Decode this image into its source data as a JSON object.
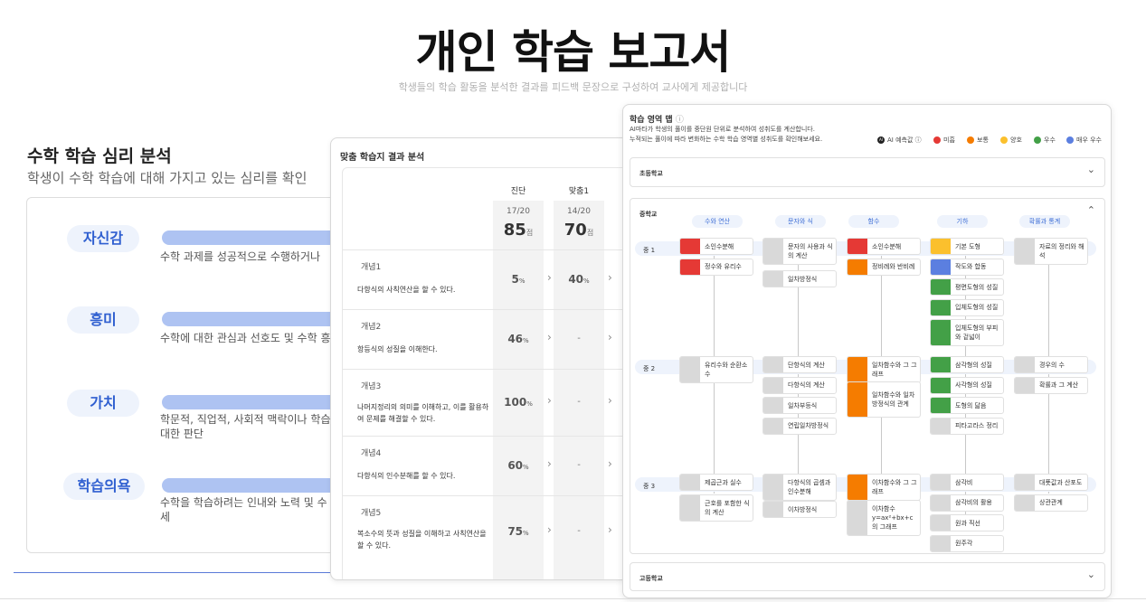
{
  "hero": {
    "title": "개인 학습 보고서",
    "subtitle": "학생들의 학습 활동을 분석한 결과를 피드백 문장으로 구성하여 교사에게 제공합니다"
  },
  "psych": {
    "title": "수학 학습 심리 분석",
    "subtitle": "학생이 수학 학습에 대해 가지고 있는 심리를 확인",
    "rows": [
      {
        "label": "자신감",
        "desc": "수학 과제를 성공적으로 수행하거나"
      },
      {
        "label": "흥미",
        "desc": "수학에 대한 관심과 선호도 및 수학 흥"
      },
      {
        "label": "가치",
        "desc": "학문적, 직업적, 사회적 맥락이나 학습 대한 판단"
      },
      {
        "label": "학습의욕",
        "desc": "수학을 학습하려는 인내와 노력 및 수 자세"
      }
    ]
  },
  "worksheet": {
    "title": "맞춤 학습지 결과 분석",
    "columns": [
      {
        "name": "진단",
        "frac": "17/20",
        "score": "85",
        "unit": "점"
      },
      {
        "name": "맞춤1",
        "frac": "14/20",
        "score": "70",
        "unit": "점"
      }
    ],
    "concepts": [
      {
        "name": "개념1",
        "text": "다항식의 사칙연산을 할 수 있다.",
        "v1": "5",
        "v2": "40"
      },
      {
        "name": "개념2",
        "text": "항등식의 성질을 이해한다.",
        "v1": "46",
        "v2": "-"
      },
      {
        "name": "개념3",
        "text": "나머지정리의 의미를 이해하고, 이를 활용하여 문제를 해결할 수 있다.",
        "v1": "100",
        "v2": "-"
      },
      {
        "name": "개념4",
        "text": "다항식의 인수분해를 할 수 있다.",
        "v1": "60",
        "v2": "-"
      },
      {
        "name": "개념5",
        "text": "복소수의 뜻과 성질을 이해하고 사칙연산을 할 수 있다.",
        "v1": "75",
        "v2": "-"
      }
    ],
    "percent": "%",
    "chevron": "›"
  },
  "map": {
    "title": "학습 영역 맵",
    "info_icon": "ⓘ",
    "desc_line1": "AI마타가 학생의 풀이를 중단원 단위로 분석하여 성취도를 계산합니다.",
    "desc_line2": "누적되는 풀이에 따라 변화하는 수학 학습 영역별 성취도를 확인해보세요.",
    "legend": [
      {
        "label": "AI 예측값 ⓘ",
        "color": "#222222",
        "text": "AI"
      },
      {
        "label": "미흡",
        "color": "#e53935"
      },
      {
        "label": "보통",
        "color": "#f57c00"
      },
      {
        "label": "양호",
        "color": "#fbc02d"
      },
      {
        "label": "우수",
        "color": "#43a047"
      },
      {
        "label": "매우 우수",
        "color": "#5b7fe0"
      }
    ],
    "sections": {
      "elementary": "초등학교",
      "middle": "중학교",
      "high": "고등학교"
    },
    "chevron_down": "⌄",
    "chevron_up": "⌃",
    "subjects": [
      "수와 연산",
      "문자와 식",
      "함수",
      "기하",
      "확률과 통계"
    ],
    "grades": [
      "중 1",
      "중 2",
      "중 3"
    ],
    "nodes": [
      {
        "col": 0,
        "grade": 0,
        "slot": 0,
        "text": "소인수분해",
        "level": "red"
      },
      {
        "col": 0,
        "grade": 0,
        "slot": 1,
        "text": "정수와 유리수",
        "level": "red"
      },
      {
        "col": 1,
        "grade": 0,
        "slot": 0,
        "text": "문자의 사용과 식의 계산",
        "level": "gray",
        "tall": true
      },
      {
        "col": 1,
        "grade": 0,
        "slot": 1.6,
        "text": "일차방정식",
        "level": "gray"
      },
      {
        "col": 2,
        "grade": 0,
        "slot": 0,
        "text": "소인수분해",
        "level": "red"
      },
      {
        "col": 2,
        "grade": 0,
        "slot": 1,
        "text": "정비례와 반비례",
        "level": "orange"
      },
      {
        "col": 3,
        "grade": 0,
        "slot": 0,
        "text": "기본 도형",
        "level": "yellow"
      },
      {
        "col": 3,
        "grade": 0,
        "slot": 1,
        "text": "작도와 합동",
        "level": "blue"
      },
      {
        "col": 3,
        "grade": 0,
        "slot": 2,
        "text": "평면도형의 성질",
        "level": "green"
      },
      {
        "col": 3,
        "grade": 0,
        "slot": 3,
        "text": "입체도형의 성질",
        "level": "green"
      },
      {
        "col": 3,
        "grade": 0,
        "slot": 4,
        "text": "입체도형의 부피와 겉넓이",
        "level": "green",
        "tall": true
      },
      {
        "col": 4,
        "grade": 0,
        "slot": 0,
        "text": "자료의 정리와 해석",
        "level": "gray",
        "tall": true
      },
      {
        "col": 0,
        "grade": 1,
        "slot": 0,
        "text": "유리수와 순환소수",
        "level": "gray",
        "tall": true
      },
      {
        "col": 1,
        "grade": 1,
        "slot": 0,
        "text": "단항식의 계산",
        "level": "gray"
      },
      {
        "col": 1,
        "grade": 1,
        "slot": 1,
        "text": "다항식의 계산",
        "level": "gray"
      },
      {
        "col": 1,
        "grade": 1,
        "slot": 2,
        "text": "일차부등식",
        "level": "gray"
      },
      {
        "col": 1,
        "grade": 1,
        "slot": 3,
        "text": "연립일차방정식",
        "level": "gray"
      },
      {
        "col": 2,
        "grade": 1,
        "slot": 0,
        "text": "일차함수와 그 그래프",
        "level": "orange",
        "tall": true
      },
      {
        "col": 2,
        "grade": 1,
        "slot": 1.25,
        "text": "일차함수와 일차방정식의 관계",
        "level": "orange",
        "tall3": true
      },
      {
        "col": 3,
        "grade": 1,
        "slot": 0,
        "text": "삼각형의 성질",
        "level": "green"
      },
      {
        "col": 3,
        "grade": 1,
        "slot": 1,
        "text": "사각형의 성질",
        "level": "green"
      },
      {
        "col": 3,
        "grade": 1,
        "slot": 2,
        "text": "도형의 닮음",
        "level": "green"
      },
      {
        "col": 3,
        "grade": 1,
        "slot": 3,
        "text": "피타고라스 정리",
        "level": "gray"
      },
      {
        "col": 4,
        "grade": 1,
        "slot": 0,
        "text": "경우의 수",
        "level": "gray"
      },
      {
        "col": 4,
        "grade": 1,
        "slot": 1,
        "text": "확률과 그 계산",
        "level": "gray"
      },
      {
        "col": 0,
        "grade": 2,
        "slot": 0,
        "text": "제곱근과 실수",
        "level": "gray"
      },
      {
        "col": 0,
        "grade": 2,
        "slot": 1,
        "text": "근호를 포함한 식의 계산",
        "level": "gray",
        "tall": true
      },
      {
        "col": 1,
        "grade": 2,
        "slot": 0,
        "text": "다항식의 곱셈과 인수분해",
        "level": "gray",
        "tall": true
      },
      {
        "col": 1,
        "grade": 2,
        "slot": 1.35,
        "text": "이차방정식",
        "level": "gray"
      },
      {
        "col": 2,
        "grade": 2,
        "slot": 0,
        "text": "이차함수와 그 그래프",
        "level": "orange",
        "tall": true
      },
      {
        "col": 2,
        "grade": 2,
        "slot": 1.3,
        "text": "이차함수 y=ax²+bx+c 의 그래프",
        "level": "gray",
        "tall3": true
      },
      {
        "col": 3,
        "grade": 2,
        "slot": 0,
        "text": "삼각비",
        "level": "gray"
      },
      {
        "col": 3,
        "grade": 2,
        "slot": 1,
        "text": "삼각비의 활용",
        "level": "gray"
      },
      {
        "col": 3,
        "grade": 2,
        "slot": 2,
        "text": "원과 직선",
        "level": "gray"
      },
      {
        "col": 3,
        "grade": 2,
        "slot": 3,
        "text": "원주각",
        "level": "gray"
      },
      {
        "col": 4,
        "grade": 2,
        "slot": 0,
        "text": "대푯값과 산포도",
        "level": "gray"
      },
      {
        "col": 4,
        "grade": 2,
        "slot": 1,
        "text": "상관관계",
        "level": "gray"
      }
    ],
    "level_colors": {
      "red": "#e53935",
      "orange": "#f57c00",
      "yellow": "#fbc02d",
      "green": "#43a047",
      "blue": "#5b7fe0",
      "gray": "#d9d9d9"
    }
  }
}
